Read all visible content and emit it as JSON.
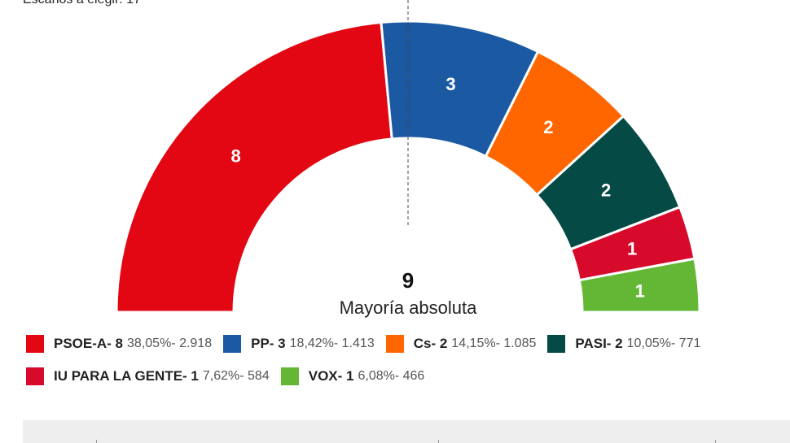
{
  "header": {
    "partial_text": "Escaños a elegir: 17"
  },
  "chart_data": {
    "type": "parliament-semicircle",
    "total_seats": 17,
    "majority": {
      "value": "9",
      "label": "Mayoría absoluta"
    },
    "series": [
      {
        "name": "PSOE-A",
        "seats": 8,
        "percent": "38,05%",
        "votes": "2.918",
        "color": "#e30613"
      },
      {
        "name": "PP",
        "seats": 3,
        "percent": "18,42%",
        "votes": "1.413",
        "color": "#1b5aa3"
      },
      {
        "name": "Cs",
        "seats": 2,
        "percent": "14,15%",
        "votes": "1.085",
        "color": "#ff6600"
      },
      {
        "name": "PASI",
        "seats": 2,
        "percent": "10,05%",
        "votes": "771",
        "color": "#054a44"
      },
      {
        "name": "IU PARA LA GENTE",
        "seats": 1,
        "percent": "7,62%",
        "votes": "584",
        "color": "#d80a2c"
      },
      {
        "name": "VOX",
        "seats": 1,
        "percent": "6,08%",
        "votes": "466",
        "color": "#63b734"
      }
    ]
  },
  "legend": {
    "rows": [
      [
        {
          "name_label": "PSOE-A- 8",
          "detail": "38,05%- 2.918",
          "color": "#e30613"
        },
        {
          "name_label": "PP- 3",
          "detail": "18,42%- 1.413",
          "color": "#1b5aa3"
        },
        {
          "name_label": "Cs- 2",
          "detail": "14,15%- 1.085",
          "color": "#ff6600"
        },
        {
          "name_label": "PASI- 2",
          "detail": "10,05%- 771",
          "color": "#054a44"
        }
      ],
      [
        {
          "name_label": "IU PARA LA GENTE- 1",
          "detail": "7,62%- 584",
          "color": "#d80a2c"
        },
        {
          "name_label": "VOX- 1",
          "detail": "6,08%- 466",
          "color": "#63b734"
        }
      ]
    ]
  }
}
